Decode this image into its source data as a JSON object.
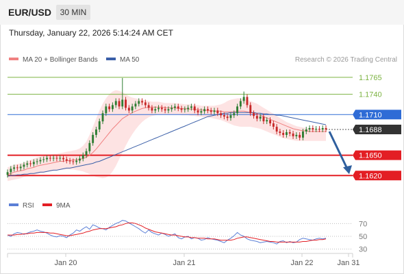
{
  "header": {
    "symbol": "EUR/USD",
    "timeframe": "30 MIN",
    "datetime": "Thursday, January 22, 2026 5:14:24 AM CET"
  },
  "colors": {
    "up": "#2e7d32",
    "down": "#c62828",
    "ma20": "#f08080",
    "bollinger": "#fde0e0",
    "ma50": "#3a5fa8",
    "green_level": "#7cb342",
    "red_level": "#e31e24",
    "blue_level": "#2f6cd6",
    "current": "#333333",
    "rsi": "#5b7fd6",
    "rsi_ma": "#e31e24",
    "arrow": "#2f5f9e"
  },
  "chart_data": [
    {
      "type": "candlestick",
      "legend": [
        {
          "label": "MA 20 + Bollinger Bands",
          "color": "#f08080"
        },
        {
          "label": "MA 50",
          "color": "#3a5fa8"
        }
      ],
      "source": "Research © 2026 Trading Central",
      "ylim": [
        1.1596,
        1.1778
      ],
      "x_ticks": [
        "Jan 20",
        "Jan 21",
        "Jan 22",
        "Jan 31"
      ],
      "levels": [
        {
          "value": 1.1765,
          "label": "1.1765",
          "kind": "resistance",
          "color": "#7cb342"
        },
        {
          "value": 1.174,
          "label": "1.1740",
          "kind": "resistance",
          "color": "#7cb342"
        },
        {
          "value": 1.171,
          "label": "1.1710",
          "kind": "pivot",
          "color": "#2f6cd6"
        },
        {
          "value": 1.1688,
          "label": "1.1688",
          "kind": "last",
          "color": "#333333"
        },
        {
          "value": 1.165,
          "label": "1.1650",
          "kind": "support",
          "color": "#e31e24"
        },
        {
          "value": 1.162,
          "label": "1.1620",
          "kind": "support",
          "color": "#e31e24"
        }
      ],
      "close": [
        1.1625,
        1.163,
        1.1632,
        1.1631,
        1.1633,
        1.1636,
        1.1638,
        1.1637,
        1.164,
        1.1641,
        1.1643,
        1.1644,
        1.1646,
        1.1645,
        1.1646,
        1.1645,
        1.1646,
        1.1644,
        1.1642,
        1.1641,
        1.164,
        1.1642,
        1.1645,
        1.165,
        1.1656,
        1.1668,
        1.168,
        1.1688,
        1.17,
        1.1712,
        1.1722,
        1.1718,
        1.1724,
        1.173,
        1.1722,
        1.1732,
        1.172,
        1.1716,
        1.1722,
        1.1726,
        1.173,
        1.1728,
        1.1724,
        1.172,
        1.1716,
        1.1718,
        1.172,
        1.1718,
        1.1716,
        1.1718,
        1.172,
        1.1722,
        1.1719,
        1.1717,
        1.1718,
        1.172,
        1.1722,
        1.1716,
        1.1713,
        1.1715,
        1.1718,
        1.1716,
        1.1714,
        1.1716,
        1.1712,
        1.1709,
        1.1707,
        1.1705,
        1.1709,
        1.1712,
        1.1722,
        1.173,
        1.1736,
        1.1724,
        1.1712,
        1.1708,
        1.1704,
        1.1707,
        1.17,
        1.1702,
        1.1697,
        1.1692,
        1.1685,
        1.1683,
        1.168,
        1.1684,
        1.1682,
        1.1678,
        1.168,
        1.1676,
        1.1685,
        1.1688,
        1.169,
        1.1688,
        1.1689,
        1.1688,
        1.169,
        1.1688
      ],
      "ma20": [
        1.1622,
        1.1623,
        1.1625,
        1.1626,
        1.1627,
        1.1628,
        1.163,
        1.1631,
        1.1632,
        1.1634,
        1.1635,
        1.1636,
        1.1637,
        1.1638,
        1.1639,
        1.164,
        1.1641,
        1.1641,
        1.1642,
        1.1642,
        1.1643,
        1.1643,
        1.1644,
        1.1645,
        1.1647,
        1.165,
        1.1654,
        1.1659,
        1.1665,
        1.1671,
        1.1677,
        1.1683,
        1.1689,
        1.1694,
        1.1699,
        1.1704,
        1.1707,
        1.171,
        1.1713,
        1.1715,
        1.1717,
        1.1719,
        1.172,
        1.1721,
        1.1721,
        1.1721,
        1.1721,
        1.1721,
        1.172,
        1.172,
        1.172,
        1.172,
        1.1719,
        1.1719,
        1.1719,
        1.1718,
        1.1718,
        1.1718,
        1.1717,
        1.1717,
        1.1716,
        1.1716,
        1.1716,
        1.1715,
        1.1715,
        1.1715,
        1.1714,
        1.1714,
        1.1714,
        1.1714,
        1.1715,
        1.1715,
        1.1715,
        1.1714,
        1.1713,
        1.1712,
        1.1711,
        1.1709,
        1.1707,
        1.1705,
        1.1703,
        1.1701,
        1.1699,
        1.1697,
        1.1695,
        1.1693,
        1.1691,
        1.1689,
        1.1688,
        1.1687,
        1.1686,
        1.1686,
        1.1685,
        1.1685,
        1.1685,
        1.1685,
        1.1685,
        1.1685
      ],
      "bb_upper": [
        1.1632,
        1.1634,
        1.1636,
        1.1637,
        1.1638,
        1.1639,
        1.1641,
        1.1643,
        1.1645,
        1.1647,
        1.1648,
        1.1649,
        1.165,
        1.1651,
        1.1652,
        1.1652,
        1.1653,
        1.1654,
        1.1655,
        1.1656,
        1.1657,
        1.1658,
        1.166,
        1.1664,
        1.167,
        1.168,
        1.1692,
        1.1704,
        1.1716,
        1.1726,
        1.1734,
        1.174,
        1.1744,
        1.1746,
        1.1745,
        1.1743,
        1.174,
        1.1737,
        1.1735,
        1.1734,
        1.1733,
        1.1732,
        1.1731,
        1.173,
        1.1729,
        1.1729,
        1.1729,
        1.1728,
        1.1727,
        1.1727,
        1.1727,
        1.1727,
        1.1726,
        1.1726,
        1.1725,
        1.1725,
        1.1725,
        1.1724,
        1.1724,
        1.1723,
        1.1723,
        1.1723,
        1.1723,
        1.1723,
        1.1724,
        1.1725,
        1.1727,
        1.173,
        1.1732,
        1.1733,
        1.1734,
        1.1734,
        1.1733,
        1.1732,
        1.173,
        1.1728,
        1.1726,
        1.1723,
        1.172,
        1.1717,
        1.1714,
        1.1711,
        1.1708,
        1.1705,
        1.1702,
        1.1699,
        1.1697,
        1.1695,
        1.1693,
        1.1692,
        1.1691,
        1.169,
        1.169,
        1.1689,
        1.1689,
        1.1689,
        1.1689,
        1.1689
      ],
      "bb_lower": [
        1.1612,
        1.1613,
        1.1614,
        1.1615,
        1.1616,
        1.1618,
        1.1619,
        1.162,
        1.1621,
        1.1622,
        1.1623,
        1.1624,
        1.1625,
        1.1626,
        1.1627,
        1.1628,
        1.1628,
        1.1629,
        1.1629,
        1.1629,
        1.1629,
        1.1628,
        1.1627,
        1.1626,
        1.1624,
        1.1622,
        1.162,
        1.1618,
        1.1617,
        1.1616,
        1.1617,
        1.162,
        1.1626,
        1.1634,
        1.1644,
        1.1654,
        1.1664,
        1.1673,
        1.1681,
        1.1688,
        1.1694,
        1.1699,
        1.1703,
        1.1706,
        1.1708,
        1.1709,
        1.171,
        1.171,
        1.171,
        1.171,
        1.171,
        1.171,
        1.171,
        1.1709,
        1.1709,
        1.1709,
        1.1708,
        1.1708,
        1.1707,
        1.1707,
        1.1706,
        1.1706,
        1.1705,
        1.1704,
        1.1703,
        1.1702,
        1.17,
        1.1698,
        1.1696,
        1.1694,
        1.1693,
        1.1692,
        1.1692,
        1.1692,
        1.1692,
        1.1691,
        1.169,
        1.1689,
        1.1687,
        1.1685,
        1.1683,
        1.1681,
        1.1679,
        1.1677,
        1.1675,
        1.1674,
        1.1673,
        1.1672,
        1.1671,
        1.1671,
        1.1671,
        1.1671,
        1.1671,
        1.1671,
        1.1671,
        1.1671,
        1.1671,
        1.1671
      ],
      "ma50": [
        1.1619,
        1.162,
        1.162,
        1.1621,
        1.1621,
        1.1622,
        1.1622,
        1.1623,
        1.1623,
        1.1624,
        1.1625,
        1.1625,
        1.1626,
        1.1627,
        1.1628,
        1.1628,
        1.1629,
        1.163,
        1.1631,
        1.1631,
        1.1632,
        1.1633,
        1.1634,
        1.1635,
        1.1636,
        1.1637,
        1.1638,
        1.164,
        1.1641,
        1.1643,
        1.1645,
        1.1647,
        1.1649,
        1.1651,
        1.1653,
        1.1655,
        1.1657,
        1.1659,
        1.1661,
        1.1663,
        1.1665,
        1.1667,
        1.1669,
        1.1671,
        1.1673,
        1.1675,
        1.1677,
        1.1679,
        1.1681,
        1.1683,
        1.1685,
        1.1687,
        1.1689,
        1.1691,
        1.1693,
        1.1695,
        1.1697,
        1.1699,
        1.1701,
        1.1703,
        1.1705,
        1.1707,
        1.1708,
        1.1709,
        1.171,
        1.1711,
        1.1712,
        1.1712,
        1.1713,
        1.1713,
        1.1713,
        1.1713,
        1.1713,
        1.1713,
        1.1713,
        1.1713,
        1.1712,
        1.1712,
        1.1711,
        1.1711,
        1.171,
        1.171,
        1.1709,
        1.1709,
        1.1708,
        1.1707,
        1.1706,
        1.1705,
        1.1704,
        1.1703,
        1.1702,
        1.1701,
        1.17,
        1.1699,
        1.1698,
        1.1697,
        1.1696,
        1.1695
      ],
      "forecast": {
        "from": 1.1685,
        "to": 1.162,
        "direction": "down"
      }
    },
    {
      "type": "line",
      "legend": [
        {
          "label": "RSI",
          "color": "#5b7fd6"
        },
        {
          "label": "9MA",
          "color": "#e31e24"
        }
      ],
      "ylim": [
        20,
        80
      ],
      "y_ticks": [
        70,
        50,
        30
      ],
      "series": [
        {
          "name": "RSI",
          "values": [
            52,
            50,
            54,
            56,
            55,
            53,
            55,
            57,
            58,
            60,
            58,
            57,
            55,
            52,
            50,
            49,
            51,
            50,
            48,
            52,
            55,
            60,
            58,
            62,
            65,
            61,
            68,
            66,
            63,
            62,
            60,
            64,
            67,
            70,
            72,
            75,
            74,
            71,
            68,
            65,
            62,
            58,
            55,
            60,
            56,
            54,
            52,
            55,
            53,
            50,
            52,
            54,
            48,
            46,
            49,
            50,
            46,
            48,
            47,
            44,
            45,
            48,
            46,
            45,
            44,
            42,
            40,
            44,
            47,
            51,
            56,
            52,
            50,
            46,
            44,
            43,
            42,
            40,
            41,
            42,
            41,
            40,
            38,
            42,
            43,
            40,
            42,
            40,
            41,
            45,
            47,
            46,
            45,
            44,
            46,
            47,
            46,
            47
          ]
        },
        {
          "name": "9MA",
          "values": [
            52,
            52,
            52,
            53,
            53,
            54,
            54,
            55,
            55,
            56,
            56,
            56,
            56,
            55,
            55,
            54,
            53,
            52,
            51,
            51,
            52,
            53,
            54,
            55,
            57,
            58,
            60,
            61,
            62,
            62,
            62,
            63,
            64,
            65,
            67,
            68,
            70,
            71,
            71,
            70,
            68,
            66,
            63,
            61,
            59,
            57,
            56,
            55,
            54,
            53,
            52,
            52,
            51,
            50,
            49,
            49,
            48,
            48,
            47,
            47,
            47,
            46,
            46,
            46,
            45,
            44,
            44,
            44,
            44,
            45,
            47,
            48,
            49,
            49,
            48,
            47,
            46,
            45,
            44,
            43,
            42,
            42,
            41,
            41,
            41,
            41,
            41,
            41,
            41,
            41,
            42,
            42,
            43,
            44,
            44,
            45,
            45,
            46
          ]
        }
      ]
    }
  ],
  "labels": {
    "price_legend_ma20": "MA 20 + Bollinger Bands",
    "price_legend_ma50": "MA 50",
    "source": "Research © 2026 Trading Central",
    "rsi_legend": "RSI",
    "rsi_ma_legend": "9MA",
    "rsi_ticks": [
      "70",
      "50",
      "30"
    ],
    "x_ticks": [
      "Jan 20",
      "Jan 21",
      "Jan 22",
      "Jan 31"
    ],
    "levels": [
      "1.1765",
      "1.1740",
      "1.1710",
      "1.1688",
      "1.1650",
      "1.1620"
    ]
  }
}
